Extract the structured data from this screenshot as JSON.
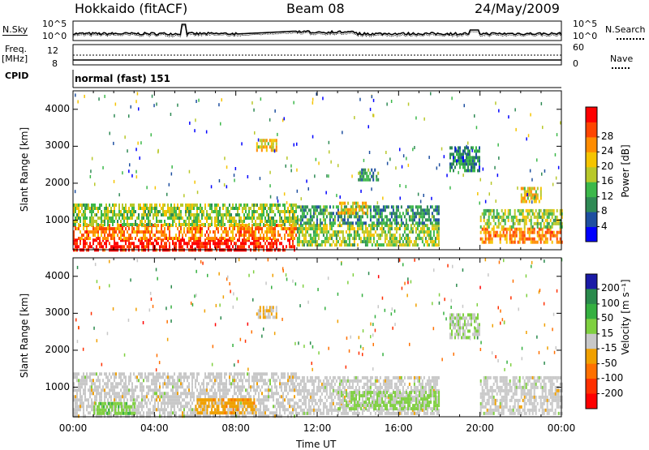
{
  "header": {
    "radar": "Hokkaido (fitACF)",
    "beam": "Beam 08",
    "date": "24/May/2009"
  },
  "noise_panel": {
    "left_label": "N.Sky",
    "right_label": "N.Search",
    "tick_top": "10^5",
    "tick_bottom": "10^0"
  },
  "freq_panel": {
    "left_label_1": "Freq.",
    "left_label_2": "[MHz]",
    "left_tick_top": "12",
    "left_tick_bottom": "8",
    "right_label": "Nave",
    "right_tick_top": "60",
    "right_tick_bottom": "0"
  },
  "cpid": {
    "label": "CPID",
    "value": "normal (fast) 151"
  },
  "colors": {
    "power": [
      "#0000ff",
      "#1e4fa0",
      "#2f8a55",
      "#3cb84a",
      "#b8c82a",
      "#f5c400",
      "#ff8c00",
      "#ff4500",
      "#ff0000"
    ],
    "velocity": [
      "#1a1aa6",
      "#2a8a4c",
      "#35b040",
      "#7fd040",
      "#c8c8c8",
      "#f0a000",
      "#ff7000",
      "#ff3000",
      "#ff0000"
    ]
  },
  "chart_data": [
    {
      "type": "heatmap",
      "name": "power",
      "ylabel": "Slant Range [km]",
      "y_ticks": [
        "1000",
        "2000",
        "3000",
        "4000"
      ],
      "ylim": [
        200,
        4500
      ],
      "colorbar_label": "Power [dB]",
      "colorbar_ticks": [
        "4",
        "8",
        "12",
        "16",
        "20",
        "24",
        "28"
      ],
      "colorbar_range": [
        0,
        30
      ],
      "regions": [
        {
          "t": [
            0,
            11
          ],
          "r": [
            200,
            500
          ],
          "v": 28
        },
        {
          "t": [
            0,
            11
          ],
          "r": [
            500,
            900
          ],
          "v": 22
        },
        {
          "t": [
            0,
            11
          ],
          "r": [
            900,
            1450
          ],
          "v": 14
        },
        {
          "t": [
            11,
            18
          ],
          "r": [
            300,
            900
          ],
          "v": 14
        },
        {
          "t": [
            11,
            18
          ],
          "r": [
            900,
            1400
          ],
          "v": 9
        },
        {
          "t": [
            13,
            14.5
          ],
          "r": [
            1200,
            1500
          ],
          "v": 18
        },
        {
          "t": [
            20,
            24
          ],
          "r": [
            400,
            800
          ],
          "v": 22
        },
        {
          "t": [
            20,
            24
          ],
          "r": [
            800,
            1300
          ],
          "v": 14
        },
        {
          "t": [
            9,
            10
          ],
          "r": [
            2900,
            3200
          ],
          "v": 18
        },
        {
          "t": [
            14,
            15
          ],
          "r": [
            2100,
            2400
          ],
          "v": 10
        },
        {
          "t": [
            18.5,
            20
          ],
          "r": [
            2300,
            3000
          ],
          "v": 8
        },
        {
          "t": [
            22,
            23
          ],
          "r": [
            1500,
            1900
          ],
          "v": 18
        }
      ]
    },
    {
      "type": "heatmap",
      "name": "velocity",
      "ylabel": "Slant Range [km]",
      "y_ticks": [
        "1000",
        "2000",
        "3000",
        "4000"
      ],
      "ylim": [
        200,
        4500
      ],
      "colorbar_label": "Velocity [m s⁻¹]",
      "colorbar_ticks": [
        "200",
        "100",
        "50",
        "15",
        "-15",
        "-50",
        "-100",
        "-200"
      ],
      "xlabel": "Time UT",
      "x_ticks": [
        "00:00",
        "04:00",
        "08:00",
        "12:00",
        "16:00",
        "20:00",
        "00:00"
      ],
      "xlim": [
        0,
        24
      ],
      "regions": [
        {
          "t": [
            0,
            11
          ],
          "r": [
            200,
            1400
          ],
          "v": 0
        },
        {
          "t": [
            6,
            9
          ],
          "r": [
            300,
            700
          ],
          "v": -60
        },
        {
          "t": [
            1,
            3
          ],
          "r": [
            300,
            600
          ],
          "v": 60
        },
        {
          "t": [
            11,
            18
          ],
          "r": [
            300,
            1300
          ],
          "v": 0
        },
        {
          "t": [
            13,
            18
          ],
          "r": [
            400,
            900
          ],
          "v": 40
        },
        {
          "t": [
            20,
            24
          ],
          "r": [
            300,
            1300
          ],
          "v": 0
        },
        {
          "t": [
            9,
            10
          ],
          "r": [
            2900,
            3200
          ],
          "v": -30
        },
        {
          "t": [
            18.5,
            20
          ],
          "r": [
            2300,
            3000
          ],
          "v": 20
        }
      ]
    }
  ]
}
